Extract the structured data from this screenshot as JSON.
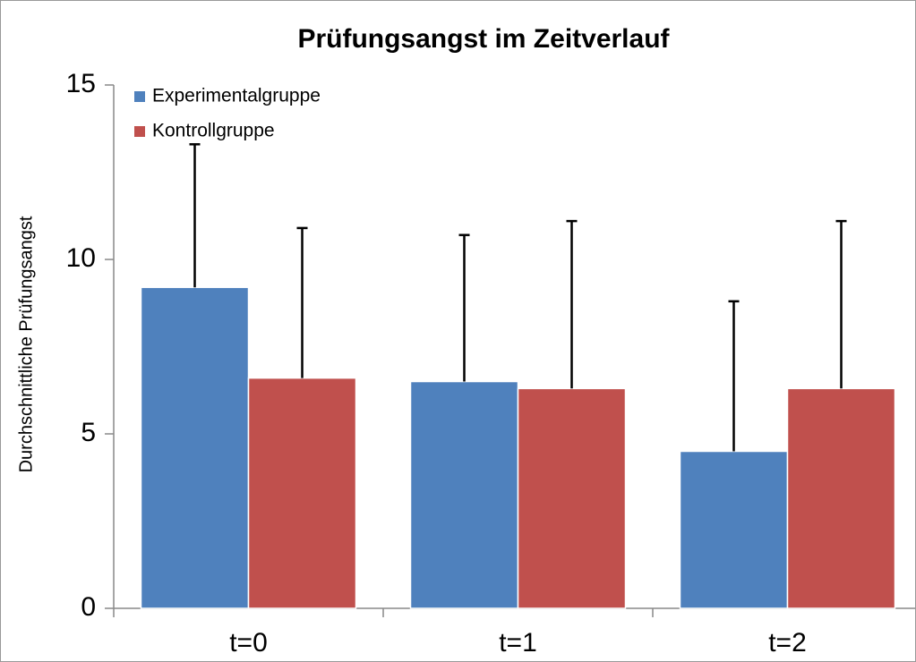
{
  "chart_data": {
    "type": "bar",
    "title": "Prüfungsangst im Zeitverlauf",
    "y_label": "Durchschnittliche Prüfungsangst",
    "categories": [
      "t=0",
      "t=1",
      "t=2"
    ],
    "series": [
      {
        "name": "Experimentalgruppe",
        "color": "#4f81bd",
        "values": [
          9.2,
          6.5,
          4.5
        ],
        "errors": [
          4.1,
          4.2,
          4.3
        ]
      },
      {
        "name": "Kontrollgruppe",
        "color": "#c0504d",
        "values": [
          6.6,
          6.3,
          6.3
        ],
        "errors": [
          4.3,
          4.8,
          4.8
        ]
      }
    ],
    "ylim": [
      0,
      15
    ],
    "yticks": [
      0,
      5,
      10,
      15
    ],
    "legend": "upper left"
  }
}
